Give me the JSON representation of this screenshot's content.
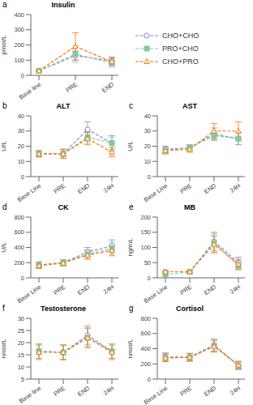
{
  "chart_data": [
    {
      "type": "line",
      "title": "Insulin",
      "annotations": [
        "a"
      ],
      "ylabel": "pmol/L",
      "categories": [
        "Base line",
        "PRE",
        "END"
      ],
      "ylim": [
        0,
        400
      ],
      "yticks": [
        0,
        100,
        200,
        300,
        400
      ],
      "legend": "right",
      "series": [
        {
          "name": "CHO+CHO",
          "color": "#8884d8",
          "marker": "circle",
          "line_style": "dashed",
          "values": [
            30,
            130,
            95
          ],
          "errors": [
            5,
            30,
            25
          ]
        },
        {
          "name": "PRO+CHO",
          "color": "#82ca9d",
          "marker": "square",
          "line_style": "dashed",
          "values": [
            30,
            140,
            80
          ],
          "errors": [
            5,
            55,
            25
          ]
        },
        {
          "name": "CHO+PRO",
          "color": "#ff7300",
          "marker": "triangle",
          "line_style": "dashed",
          "values": [
            30,
            190,
            90
          ],
          "errors": [
            5,
            90,
            25
          ]
        }
      ]
    },
    {
      "type": "line",
      "title": "ALT",
      "annotations": [
        "b"
      ],
      "ylabel": "U/L",
      "categories": [
        "Base Line",
        "PRE",
        "END",
        "24H"
      ],
      "ylim": [
        0,
        40
      ],
      "yticks": [
        0,
        10,
        20,
        30,
        40
      ],
      "series": [
        {
          "name": "CHO+CHO",
          "color": "#8884d8",
          "marker": "circle",
          "line_style": "dashed",
          "values": [
            15,
            15,
            31,
            22
          ],
          "errors": [
            2,
            3,
            5,
            5
          ]
        },
        {
          "name": "PRO+CHO",
          "color": "#82ca9d",
          "marker": "square",
          "line_style": "dashed",
          "values": [
            15,
            15,
            26,
            22
          ],
          "errors": [
            2,
            2,
            4,
            4
          ]
        },
        {
          "name": "CHO+PRO",
          "color": "#ff7300",
          "marker": "triangle",
          "line_style": "dashed",
          "values": [
            15,
            15,
            25,
            16
          ],
          "errors": [
            2,
            3,
            4,
            3
          ]
        }
      ]
    },
    {
      "type": "line",
      "title": "AST",
      "annotations": [
        "c"
      ],
      "ylabel": "U/L",
      "categories": [
        "Base Line",
        "PRE",
        "END",
        "24H"
      ],
      "ylim": [
        0,
        40
      ],
      "yticks": [
        0,
        10,
        20,
        30,
        40
      ],
      "series": [
        {
          "name": "CHO+CHO",
          "color": "#8884d8",
          "marker": "circle",
          "line_style": "dashed",
          "values": [
            18,
            19,
            28,
            25
          ],
          "errors": [
            2,
            2,
            4,
            4
          ]
        },
        {
          "name": "PRO+CHO",
          "color": "#82ca9d",
          "marker": "square",
          "line_style": "dashed",
          "values": [
            17,
            19,
            27,
            25
          ],
          "errors": [
            2,
            2,
            3,
            4
          ]
        },
        {
          "name": "CHO+PRO",
          "color": "#ff7300",
          "marker": "triangle",
          "line_style": "dashed",
          "values": [
            17,
            18,
            30,
            30
          ],
          "errors": [
            2,
            2,
            5,
            6
          ]
        }
      ]
    },
    {
      "type": "line",
      "title": "CK",
      "annotations": [
        "d"
      ],
      "ylabel": "U/L",
      "categories": [
        "Base Line",
        "PRE",
        "END",
        "24H"
      ],
      "ylim": [
        0,
        800
      ],
      "yticks": [
        0,
        200,
        400,
        600,
        800
      ],
      "series": [
        {
          "name": "CHO+CHO",
          "color": "#8884d8",
          "marker": "circle",
          "line_style": "dashed",
          "values": [
            170,
            200,
            340,
            420
          ],
          "errors": [
            40,
            40,
            60,
            80
          ]
        },
        {
          "name": "PRO+CHO",
          "color": "#82ca9d",
          "marker": "square",
          "line_style": "dashed",
          "values": [
            170,
            200,
            310,
            390
          ],
          "errors": [
            40,
            40,
            60,
            80
          ]
        },
        {
          "name": "CHO+PRO",
          "color": "#ff7300",
          "marker": "triangle",
          "line_style": "dashed",
          "values": [
            160,
            195,
            300,
            360
          ],
          "errors": [
            35,
            35,
            55,
            70
          ]
        }
      ]
    },
    {
      "type": "line",
      "title": "MB",
      "annotations": [
        "e"
      ],
      "ylabel": "ng/mL",
      "categories": [
        "Base Line",
        "PRE",
        "END",
        "24H"
      ],
      "ylim": [
        0,
        200
      ],
      "yticks": [
        0,
        50,
        100,
        150,
        200
      ],
      "series": [
        {
          "name": "CHO+CHO",
          "color": "#8884d8",
          "marker": "circle",
          "line_style": "dashed",
          "values": [
            20,
            20,
            120,
            50
          ],
          "errors": [
            4,
            4,
            30,
            18
          ]
        },
        {
          "name": "PRO+CHO",
          "color": "#82ca9d",
          "marker": "square",
          "line_style": "dashed",
          "values": [
            10,
            20,
            115,
            40
          ],
          "errors": [
            3,
            4,
            30,
            15
          ]
        },
        {
          "name": "CHO+PRO",
          "color": "#ff7300",
          "marker": "triangle",
          "line_style": "dashed",
          "values": [
            20,
            20,
            110,
            45
          ],
          "errors": [
            4,
            4,
            28,
            16
          ]
        }
      ]
    },
    {
      "type": "line",
      "title": "Testosterone",
      "annotations": [
        "f"
      ],
      "ylabel": "nmol/L",
      "categories": [
        "Base line",
        "PRE",
        "END",
        "24H"
      ],
      "ylim": [
        5,
        30
      ],
      "yticks": [
        5,
        10,
        15,
        20,
        25,
        30
      ],
      "series": [
        {
          "name": "CHO+CHO",
          "color": "#8884d8",
          "marker": "circle",
          "line_style": "dashed",
          "values": [
            16.5,
            16,
            23,
            16.5
          ],
          "errors": [
            3,
            3,
            4,
            3
          ]
        },
        {
          "name": "PRO+CHO",
          "color": "#82ca9d",
          "marker": "square",
          "line_style": "dashed",
          "values": [
            16.5,
            16,
            22,
            16.5
          ],
          "errors": [
            3,
            3,
            4,
            3
          ]
        },
        {
          "name": "CHO+PRO",
          "color": "#ff7300",
          "marker": "triangle",
          "line_style": "dashed",
          "values": [
            16,
            16,
            22,
            16
          ],
          "errors": [
            3,
            3,
            4,
            3
          ]
        }
      ]
    },
    {
      "type": "line",
      "title": "Cortisol",
      "annotations": [
        "g"
      ],
      "ylabel": "nmol/L",
      "categories": [
        "Base Line",
        "PRE",
        "END",
        "24H"
      ],
      "ylim": [
        0,
        800
      ],
      "yticks": [
        0,
        200,
        400,
        600,
        800
      ],
      "series": [
        {
          "name": "CHO+CHO",
          "color": "#8884d8",
          "marker": "circle",
          "line_style": "dashed",
          "values": [
            290,
            290,
            450,
            180
          ],
          "errors": [
            55,
            50,
            80,
            50
          ]
        },
        {
          "name": "PRO+CHO",
          "color": "#82ca9d",
          "marker": "square",
          "line_style": "dashed",
          "values": [
            280,
            285,
            440,
            175
          ],
          "errors": [
            50,
            50,
            80,
            50
          ]
        },
        {
          "name": "CHO+PRO",
          "color": "#ff7300",
          "marker": "triangle",
          "line_style": "dashed",
          "values": [
            280,
            285,
            430,
            185
          ],
          "errors": [
            50,
            50,
            75,
            50
          ]
        }
      ]
    }
  ]
}
